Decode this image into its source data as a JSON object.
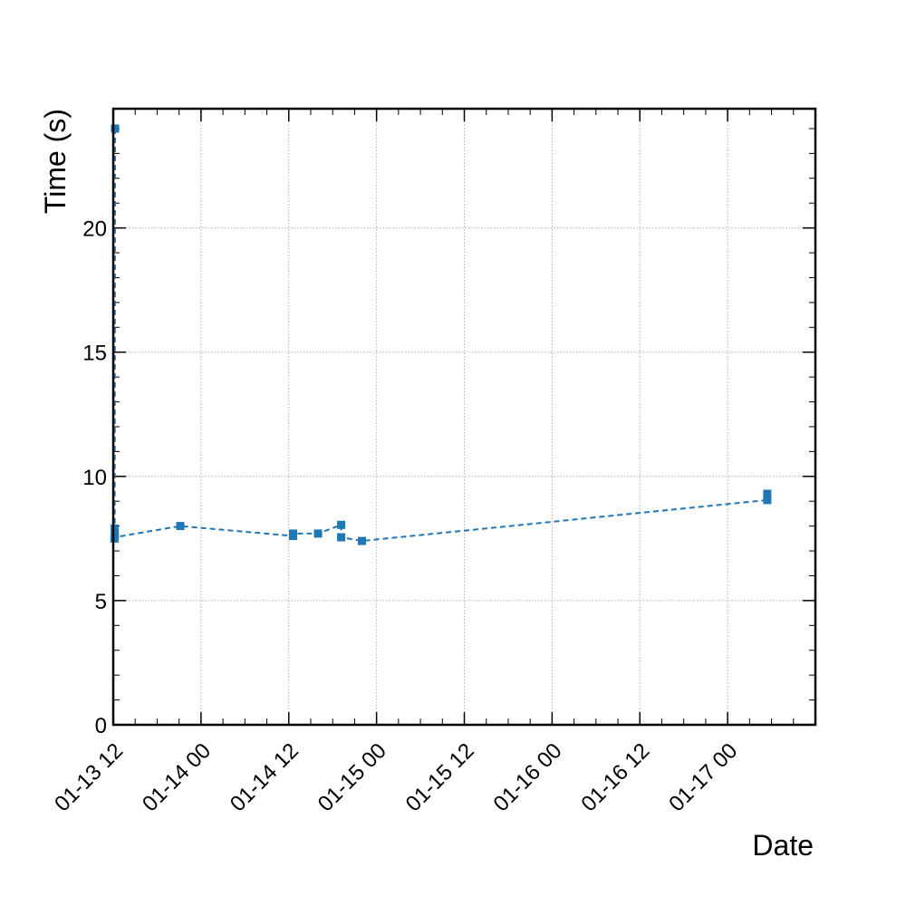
{
  "chart_data": {
    "type": "line",
    "xlabel": "Date",
    "ylabel": "Time (s)",
    "x_axis": "datetime",
    "xlim": [
      "2023-01-13 12:00",
      "2023-01-17 12:00"
    ],
    "ylim": [
      0,
      24.8
    ],
    "x_ticks": [
      {
        "value": "2023-01-13 12:00",
        "label": "01-13 12"
      },
      {
        "value": "2023-01-14 00:00",
        "label": "01-14 00"
      },
      {
        "value": "2023-01-14 12:00",
        "label": "01-14 12"
      },
      {
        "value": "2023-01-15 00:00",
        "label": "01-15 00"
      },
      {
        "value": "2023-01-15 12:00",
        "label": "01-15 12"
      },
      {
        "value": "2023-01-16 00:00",
        "label": "01-16 00"
      },
      {
        "value": "2023-01-16 12:00",
        "label": "01-16 12"
      },
      {
        "value": "2023-01-17 00:00",
        "label": "01-17 00"
      }
    ],
    "y_ticks": [
      {
        "value": 0,
        "label": "0"
      },
      {
        "value": 5,
        "label": "5"
      },
      {
        "value": 10,
        "label": "10"
      },
      {
        "value": 15,
        "label": "15"
      },
      {
        "value": 20,
        "label": "20"
      }
    ],
    "grid": true,
    "series": [
      {
        "color": "#1f77b4",
        "marker": "square",
        "linestyle": "dashed",
        "x": [
          "2023-01-13 12:15",
          "2023-01-13 12:12",
          "2023-01-13 12:12",
          "2023-01-13 12:12",
          "2023-01-13 12:10",
          "2023-01-13 12:12",
          "2023-01-13 21:10",
          "2023-01-14 12:35",
          "2023-01-14 12:35",
          "2023-01-14 16:00",
          "2023-01-14 19:10",
          "2023-01-14 19:10",
          "2023-01-14 22:00",
          "2023-01-17 05:25",
          "2023-01-17 05:25"
        ],
        "y": [
          24.0,
          7.9,
          7.7,
          7.6,
          7.5,
          7.55,
          8.0,
          7.6,
          7.7,
          7.7,
          8.05,
          7.55,
          7.4,
          9.05,
          9.3
        ]
      }
    ]
  }
}
